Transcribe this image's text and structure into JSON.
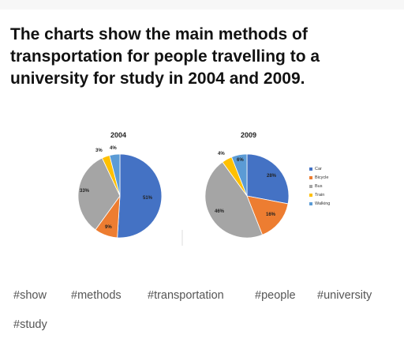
{
  "post": {
    "heading": "The charts show the main methods of transportation for people travelling to a university for study in 2004 and 2009."
  },
  "chart_data": [
    {
      "type": "pie",
      "title": "2004",
      "categories": [
        "Car",
        "Bicycle",
        "Bus",
        "Train",
        "Walking"
      ],
      "values": [
        51,
        9,
        33,
        3,
        4
      ],
      "labels": [
        "51%",
        "9%",
        "33%",
        "3%",
        "4%"
      ],
      "colors": [
        "#4472c4",
        "#ed7d31",
        "#a5a5a5",
        "#ffc000",
        "#5b9bd5"
      ]
    },
    {
      "type": "pie",
      "title": "2009",
      "categories": [
        "Car",
        "Bicycle",
        "Bus",
        "Train",
        "Walking"
      ],
      "values": [
        28,
        16,
        46,
        4,
        6
      ],
      "labels": [
        "28%",
        "16%",
        "46%",
        "4%",
        "6%"
      ],
      "colors": [
        "#4472c4",
        "#ed7d31",
        "#a5a5a5",
        "#ffc000",
        "#5b9bd5"
      ],
      "legend": "right"
    }
  ],
  "tags": [
    "#show",
    "#methods",
    "#transportation",
    "#people",
    "#university",
    "#study"
  ]
}
